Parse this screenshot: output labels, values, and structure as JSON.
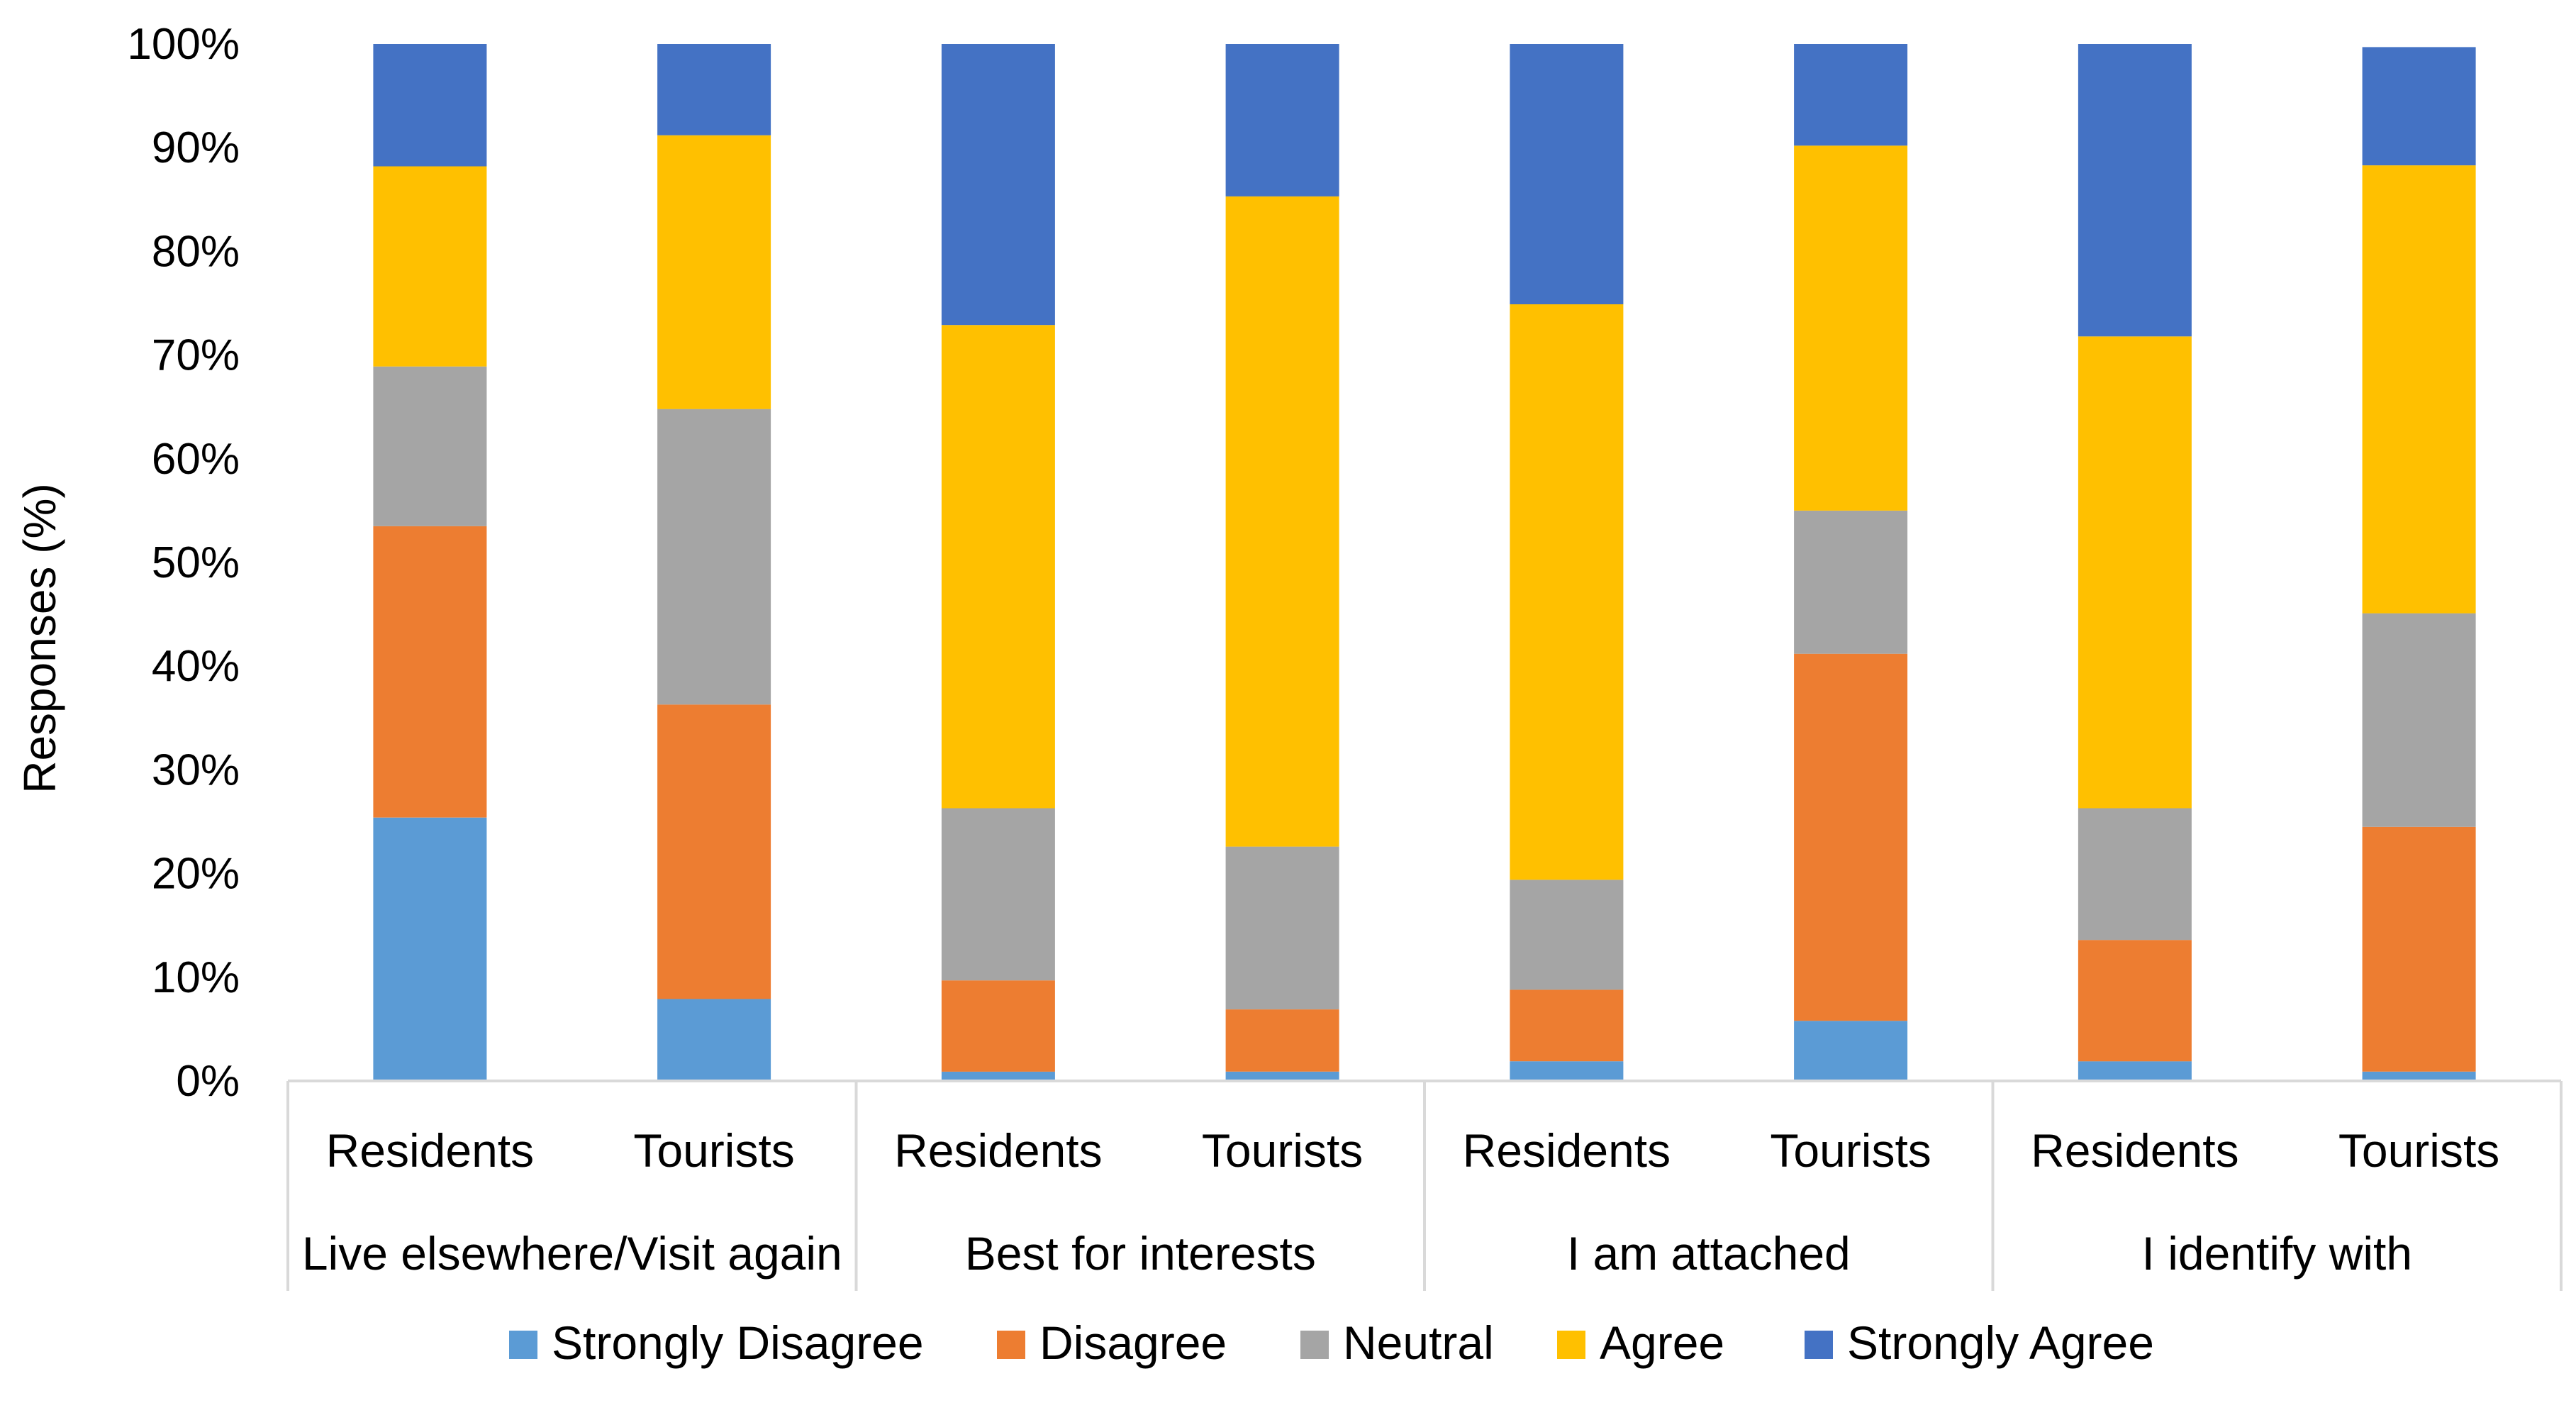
{
  "chart_data": {
    "type": "stacked-bar-100",
    "title": "",
    "xlabel": "",
    "ylabel": "Responses (%)",
    "ylim": [
      0,
      100
    ],
    "yticks": [
      "0%",
      "10%",
      "20%",
      "30%",
      "40%",
      "50%",
      "60%",
      "70%",
      "80%",
      "90%",
      "100%"
    ],
    "groups": [
      "Live elsewhere/Visit again",
      "Best for interests",
      "I am attached",
      "I identify with"
    ],
    "categories": [
      "Residents",
      "Tourists",
      "Residents",
      "Tourists",
      "Residents",
      "Tourists",
      "Residents",
      "Tourists"
    ],
    "legend_position": "bottom",
    "series": [
      {
        "name": "Strongly Disagree",
        "color": "#5B9BD5",
        "values": [
          25.4,
          7.9,
          0.9,
          0.9,
          1.9,
          5.8,
          1.9,
          0.9
        ]
      },
      {
        "name": "Disagree",
        "color": "#ED7D31",
        "values": [
          28.1,
          28.4,
          8.8,
          6.0,
          6.9,
          35.4,
          11.7,
          23.6
        ]
      },
      {
        "name": "Neutral",
        "color": "#A5A5A5",
        "values": [
          15.4,
          28.5,
          16.6,
          15.7,
          10.6,
          13.8,
          12.7,
          20.6
        ]
      },
      {
        "name": "Agree",
        "color": "#FFC000",
        "values": [
          19.3,
          26.4,
          46.6,
          62.7,
          55.5,
          35.2,
          45.5,
          43.2
        ]
      },
      {
        "name": "Strongly Agree",
        "color": "#4472C4",
        "values": [
          11.8,
          8.8,
          27.1,
          14.7,
          25.1,
          9.8,
          28.2,
          11.4
        ]
      }
    ]
  }
}
